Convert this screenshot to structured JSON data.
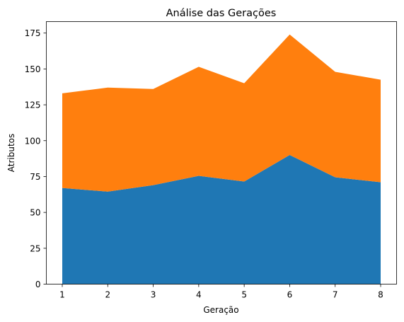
{
  "chart_data": {
    "type": "area",
    "stacked": true,
    "title": "Análise das Gerações",
    "xlabel": "Geração",
    "ylabel": "Atributos",
    "x": [
      1,
      2,
      3,
      4,
      5,
      6,
      7,
      8
    ],
    "xticks": [
      "1",
      "2",
      "3",
      "4",
      "5",
      "6",
      "7",
      "8"
    ],
    "ylim": [
      0,
      183
    ],
    "yticks": [
      "0",
      "25",
      "50",
      "75",
      "100",
      "125",
      "150",
      "175"
    ],
    "grid": false,
    "series": [
      {
        "values": [
          67,
          64.5,
          69,
          75.5,
          71.5,
          90,
          74.5,
          71
        ],
        "color": "#1f77b4"
      },
      {
        "values": [
          66,
          72.5,
          67,
          76,
          68.5,
          84,
          73.5,
          71.5
        ],
        "color": "#ff7f0e"
      }
    ]
  }
}
